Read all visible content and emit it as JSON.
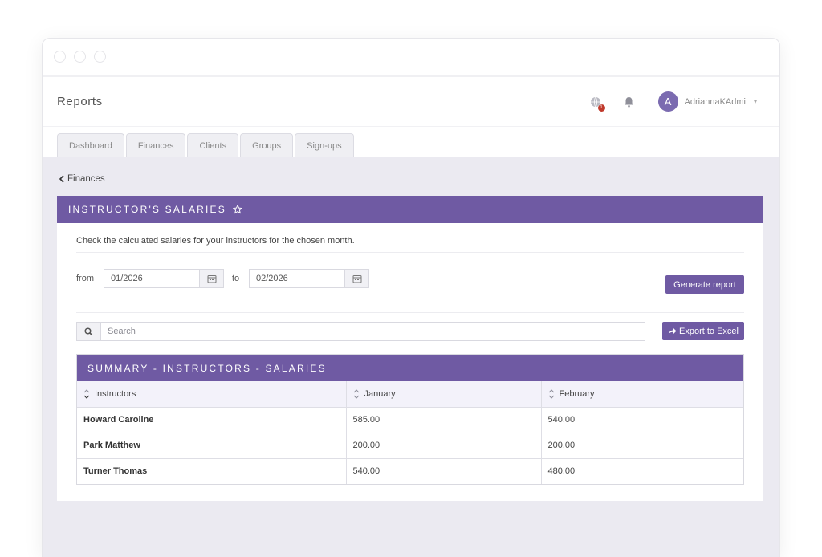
{
  "header": {
    "title": "Reports",
    "user_initial": "A",
    "username": "AdriannaKAdmi",
    "notification_badge": "1"
  },
  "tabs": [
    "Dashboard",
    "Finances",
    "Clients",
    "Groups",
    "Sign-ups"
  ],
  "breadcrumb": {
    "back_label": "Finances"
  },
  "panel": {
    "title": "INSTRUCTOR'S SALARIES",
    "description": "Check the calculated salaries for your instructors for the chosen month.",
    "from_label": "from",
    "from_value": "01/2026",
    "to_label": "to",
    "to_value": "02/2026",
    "generate_label": "Generate report",
    "search_placeholder": "Search",
    "export_label": "Export to Excel"
  },
  "summary": {
    "title": "SUMMARY - INSTRUCTORS - SALARIES",
    "columns": [
      "Instructors",
      "January",
      "February"
    ],
    "rows": [
      {
        "name": "Howard Caroline",
        "january": "585.00",
        "february": "540.00"
      },
      {
        "name": "Park Matthew",
        "january": "200.00",
        "february": "200.00"
      },
      {
        "name": "Turner Thomas",
        "january": "540.00",
        "february": "480.00"
      }
    ]
  },
  "colors": {
    "accent": "#6f5aa3",
    "background": "#ebeaf1",
    "badge": "#c0392b"
  },
  "icons": [
    "globe-icon",
    "bell-icon",
    "calendar-icon",
    "search-icon",
    "share-icon",
    "star-icon",
    "sort-icon",
    "chevron-left-icon",
    "caret-down-icon"
  ]
}
